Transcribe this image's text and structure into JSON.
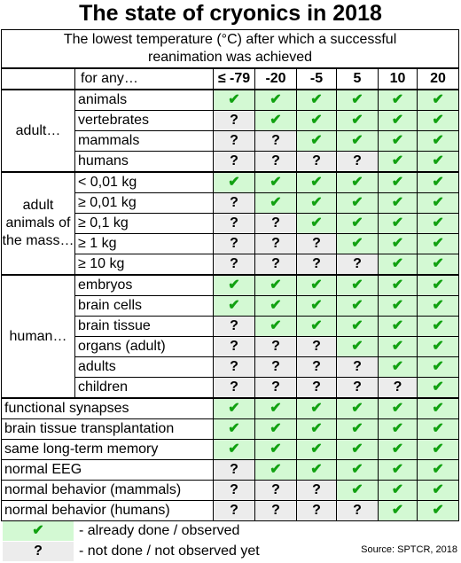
{
  "title": "The state of cryonics in 2018",
  "subtitle_line1": "The lowest temperature (°C) after which a successful",
  "subtitle_line2": "reanimation was achieved",
  "header": {
    "label": "for any…",
    "temps": [
      "≤ -79",
      "-20",
      "-5",
      "5",
      "10",
      "20"
    ]
  },
  "groups": [
    {
      "label": "adult…",
      "rows": [
        {
          "label": "animals",
          "cells": [
            "y",
            "y",
            "y",
            "y",
            "y",
            "y"
          ]
        },
        {
          "label": "vertebrates",
          "cells": [
            "n",
            "y",
            "y",
            "y",
            "y",
            "y"
          ]
        },
        {
          "label": "mammals",
          "cells": [
            "n",
            "n",
            "y",
            "y",
            "y",
            "y"
          ]
        },
        {
          "label": "humans",
          "cells": [
            "n",
            "n",
            "n",
            "n",
            "y",
            "y"
          ]
        }
      ]
    },
    {
      "label": "adult animals of the mass…",
      "rows": [
        {
          "label": "< 0,01 kg",
          "cells": [
            "y",
            "y",
            "y",
            "y",
            "y",
            "y"
          ]
        },
        {
          "label": "≥ 0,01 kg",
          "cells": [
            "n",
            "y",
            "y",
            "y",
            "y",
            "y"
          ]
        },
        {
          "label": "≥ 0,1 kg",
          "cells": [
            "n",
            "n",
            "y",
            "y",
            "y",
            "y"
          ]
        },
        {
          "label": "≥ 1 kg",
          "cells": [
            "n",
            "n",
            "n",
            "y",
            "y",
            "y"
          ]
        },
        {
          "label": "≥ 10 kg",
          "cells": [
            "n",
            "n",
            "n",
            "n",
            "y",
            "y"
          ]
        }
      ]
    },
    {
      "label": "human…",
      "rows": [
        {
          "label": "embryos",
          "cells": [
            "y",
            "y",
            "y",
            "y",
            "y",
            "y"
          ]
        },
        {
          "label": "brain cells",
          "cells": [
            "y",
            "y",
            "y",
            "y",
            "y",
            "y"
          ]
        },
        {
          "label": "brain tissue",
          "cells": [
            "n",
            "y",
            "y",
            "y",
            "y",
            "y"
          ]
        },
        {
          "label": "organs (adult)",
          "cells": [
            "n",
            "n",
            "n",
            "y",
            "y",
            "y"
          ]
        },
        {
          "label": "adults",
          "cells": [
            "n",
            "n",
            "n",
            "n",
            "y",
            "y"
          ]
        },
        {
          "label": "children",
          "cells": [
            "n",
            "n",
            "n",
            "n",
            "n",
            "y"
          ]
        }
      ]
    }
  ],
  "single_rows": [
    {
      "label": "functional synapses",
      "cells": [
        "y",
        "y",
        "y",
        "y",
        "y",
        "y"
      ]
    },
    {
      "label": "brain tissue transplantation",
      "cells": [
        "y",
        "y",
        "y",
        "y",
        "y",
        "y"
      ]
    },
    {
      "label": "same long-term memory",
      "cells": [
        "y",
        "y",
        "y",
        "y",
        "y",
        "y"
      ]
    },
    {
      "label": "normal EEG",
      "cells": [
        "n",
        "y",
        "y",
        "y",
        "y",
        "y"
      ]
    },
    {
      "label": "normal behavior (mammals)",
      "cells": [
        "n",
        "n",
        "n",
        "y",
        "y",
        "y"
      ]
    },
    {
      "label": "normal behavior (humans)",
      "cells": [
        "n",
        "n",
        "n",
        "n",
        "y",
        "y"
      ]
    }
  ],
  "symbols": {
    "yes": "✔",
    "no": "?"
  },
  "colors": {
    "yes_bg": "#d3f9d3",
    "yes_fg": "#11a111",
    "no_bg": "#ececec"
  },
  "legend": [
    {
      "kind": "yes",
      "text": "- already done / observed"
    },
    {
      "kind": "no",
      "text": "- not done / not observed yet"
    }
  ],
  "source": "Source: SPTCR, 2018"
}
